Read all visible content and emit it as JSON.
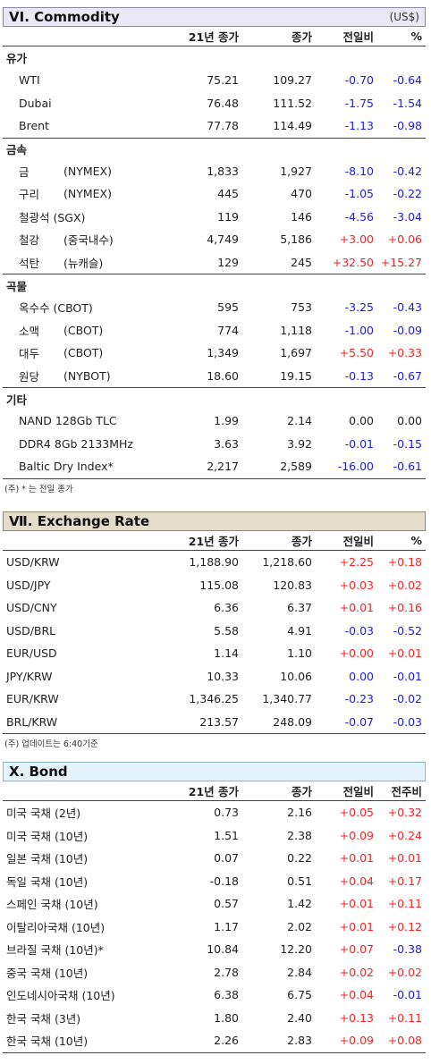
{
  "commodity": {
    "title": "VI. Commodity",
    "unit": "(US$)",
    "headers": {
      "close21": "21년 종가",
      "now": "종가",
      "chg": "전일비",
      "pct": "%"
    },
    "groups": [
      {
        "label": "유가",
        "rows": [
          {
            "name": "WTI",
            "sub": "",
            "close21": "75.21",
            "now": "109.27",
            "chg": "-0.70",
            "pct": "-0.64",
            "chg_sign": "neg",
            "pct_sign": "neg"
          },
          {
            "name": "Dubai",
            "sub": "",
            "close21": "76.48",
            "now": "111.52",
            "chg": "-1.75",
            "pct": "-1.54",
            "chg_sign": "neg",
            "pct_sign": "neg"
          },
          {
            "name": "Brent",
            "sub": "",
            "close21": "77.78",
            "now": "114.49",
            "chg": "-1.13",
            "pct": "-0.98",
            "chg_sign": "neg",
            "pct_sign": "neg"
          }
        ]
      },
      {
        "label": "금속",
        "rows": [
          {
            "name": "금",
            "sub": "(NYMEX)",
            "close21": "1,833",
            "now": "1,927",
            "chg": "-8.10",
            "pct": "-0.42",
            "chg_sign": "neg",
            "pct_sign": "neg"
          },
          {
            "name": "구리",
            "sub": "(NYMEX)",
            "close21": "445",
            "now": "470",
            "chg": "-1.05",
            "pct": "-0.22",
            "chg_sign": "neg",
            "pct_sign": "neg"
          },
          {
            "name": "철광석 (SGX)",
            "sub": "",
            "close21": "119",
            "now": "146",
            "chg": "-4.56",
            "pct": "-3.04",
            "chg_sign": "neg",
            "pct_sign": "neg"
          },
          {
            "name": "철강",
            "sub": "(중국내수)",
            "close21": "4,749",
            "now": "5,186",
            "chg": "+3.00",
            "pct": "+0.06",
            "chg_sign": "pos",
            "pct_sign": "pos"
          },
          {
            "name": "석탄",
            "sub": "(뉴캐슬)",
            "close21": "129",
            "now": "245",
            "chg": "+32.50",
            "pct": "+15.27",
            "chg_sign": "pos",
            "pct_sign": "pos"
          }
        ]
      },
      {
        "label": "곡물",
        "rows": [
          {
            "name": "옥수수 (CBOT)",
            "sub": "",
            "close21": "595",
            "now": "753",
            "chg": "-3.25",
            "pct": "-0.43",
            "chg_sign": "neg",
            "pct_sign": "neg"
          },
          {
            "name": "소맥",
            "sub": "(CBOT)",
            "close21": "774",
            "now": "1,118",
            "chg": "-1.00",
            "pct": "-0.09",
            "chg_sign": "neg",
            "pct_sign": "neg"
          },
          {
            "name": "대두",
            "sub": "(CBOT)",
            "close21": "1,349",
            "now": "1,697",
            "chg": "+5.50",
            "pct": "+0.33",
            "chg_sign": "pos",
            "pct_sign": "pos"
          },
          {
            "name": "원당",
            "sub": "(NYBOT)",
            "close21": "18.60",
            "now": "19.15",
            "chg": "-0.13",
            "pct": "-0.67",
            "chg_sign": "neg",
            "pct_sign": "neg"
          }
        ]
      },
      {
        "label": "기타",
        "rows": [
          {
            "name": "NAND 128Gb TLC",
            "sub": "",
            "close21": "1.99",
            "now": "2.14",
            "chg": "0.00",
            "pct": "0.00",
            "chg_sign": "zero",
            "pct_sign": "zero"
          },
          {
            "name": "DDR4 8Gb 2133MHz",
            "sub": "",
            "close21": "3.63",
            "now": "3.92",
            "chg": "-0.01",
            "pct": "-0.15",
            "chg_sign": "neg",
            "pct_sign": "neg"
          },
          {
            "name": "Baltic Dry Index*",
            "sub": "",
            "close21": "2,217",
            "now": "2,589",
            "chg": "-16.00",
            "pct": "-0.61",
            "chg_sign": "neg",
            "pct_sign": "neg"
          }
        ]
      }
    ],
    "note": "(주) * 는 전일 종가"
  },
  "exchange": {
    "title": "Ⅶ. Exchange Rate",
    "headers": {
      "close21": "21년 종가",
      "now": "종가",
      "chg": "전일비",
      "pct": "%"
    },
    "rows": [
      {
        "name": "USD/KRW",
        "close21": "1,188.90",
        "now": "1,218.60",
        "chg": "+2.25",
        "pct": "+0.18",
        "chg_sign": "pos",
        "pct_sign": "pos"
      },
      {
        "name": "USD/JPY",
        "close21": "115.08",
        "now": "120.83",
        "chg": "+0.03",
        "pct": "+0.02",
        "chg_sign": "pos",
        "pct_sign": "pos"
      },
      {
        "name": "USD/CNY",
        "close21": "6.36",
        "now": "6.37",
        "chg": "+0.01",
        "pct": "+0.16",
        "chg_sign": "pos",
        "pct_sign": "pos"
      },
      {
        "name": "USD/BRL",
        "close21": "5.58",
        "now": "4.91",
        "chg": "-0.03",
        "pct": "-0.52",
        "chg_sign": "neg",
        "pct_sign": "neg"
      },
      {
        "name": "EUR/USD",
        "close21": "1.14",
        "now": "1.10",
        "chg": "+0.00",
        "pct": "+0.01",
        "chg_sign": "pos",
        "pct_sign": "pos"
      },
      {
        "name": "JPY/KRW",
        "close21": "10.33",
        "now": "10.06",
        "chg": "0.00",
        "pct": "-0.01",
        "chg_sign": "zerob",
        "pct_sign": "neg"
      },
      {
        "name": "EUR/KRW",
        "close21": "1,346.25",
        "now": "1,340.77",
        "chg": "-0.23",
        "pct": "-0.02",
        "chg_sign": "neg",
        "pct_sign": "neg"
      },
      {
        "name": "BRL/KRW",
        "close21": "213.57",
        "now": "248.09",
        "chg": "-0.07",
        "pct": "-0.03",
        "chg_sign": "neg",
        "pct_sign": "neg"
      }
    ],
    "note": "(주) 업데이트는 6:40기준"
  },
  "bond": {
    "title": "X. Bond",
    "headers": {
      "close21": "21년 종가",
      "now": "종가",
      "chg": "전일비",
      "pct": "전주비"
    },
    "rows": [
      {
        "name": "미국 국채 (2년)",
        "close21": "0.73",
        "now": "2.16",
        "chg": "+0.05",
        "pct": "+0.32",
        "chg_sign": "pos",
        "pct_sign": "pos"
      },
      {
        "name": "미국 국채 (10년)",
        "close21": "1.51",
        "now": "2.38",
        "chg": "+0.09",
        "pct": "+0.24",
        "chg_sign": "pos",
        "pct_sign": "pos"
      },
      {
        "name": "일본 국채 (10년)",
        "close21": "0.07",
        "now": "0.22",
        "chg": "+0.01",
        "pct": "+0.01",
        "chg_sign": "pos",
        "pct_sign": "pos"
      },
      {
        "name": "독일 국채 (10년)",
        "close21": "-0.18",
        "now": "0.51",
        "chg": "+0.04",
        "pct": "+0.17",
        "chg_sign": "pos",
        "pct_sign": "pos"
      },
      {
        "name": "스페인 국채 (10년)",
        "close21": "0.57",
        "now": "1.42",
        "chg": "+0.01",
        "pct": "+0.11",
        "chg_sign": "pos",
        "pct_sign": "pos"
      },
      {
        "name": "이탈리아국채 (10년)",
        "close21": "1.17",
        "now": "2.02",
        "chg": "+0.01",
        "pct": "+0.12",
        "chg_sign": "pos",
        "pct_sign": "pos"
      },
      {
        "name": "브라질 국채 (10년)*",
        "close21": "10.84",
        "now": "12.20",
        "chg": "+0.07",
        "pct": "-0.38",
        "chg_sign": "pos",
        "pct_sign": "neg"
      },
      {
        "name": "중국 국채 (10년)",
        "close21": "2.78",
        "now": "2.84",
        "chg": "+0.02",
        "pct": "+0.02",
        "chg_sign": "pos",
        "pct_sign": "pos"
      },
      {
        "name": "인도네시아국채 (10년)",
        "close21": "6.38",
        "now": "6.75",
        "chg": "+0.04",
        "pct": "-0.01",
        "chg_sign": "pos",
        "pct_sign": "neg"
      },
      {
        "name": "한국 국채 (3년)",
        "close21": "1.80",
        "now": "2.40",
        "chg": "+0.13",
        "pct": "+0.11",
        "chg_sign": "pos",
        "pct_sign": "pos"
      },
      {
        "name": "한국 국채 (10년)",
        "close21": "2.26",
        "now": "2.83",
        "chg": "+0.09",
        "pct": "+0.08",
        "chg_sign": "pos",
        "pct_sign": "pos"
      }
    ]
  }
}
